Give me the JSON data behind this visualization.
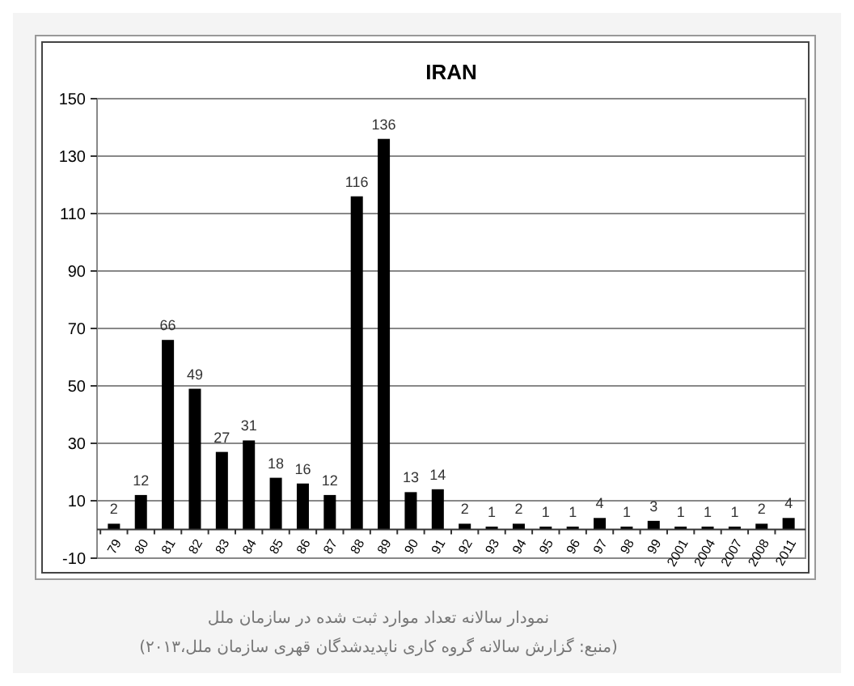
{
  "chart_data": {
    "type": "bar",
    "title": "IRAN",
    "categories": [
      "79",
      "80",
      "81",
      "82",
      "83",
      "84",
      "85",
      "86",
      "87",
      "88",
      "89",
      "90",
      "91",
      "92",
      "93",
      "94",
      "95",
      "96",
      "97",
      "98",
      "99",
      "2001",
      "2004",
      "2007",
      "2008",
      "2011"
    ],
    "values": [
      2,
      12,
      66,
      49,
      27,
      31,
      18,
      16,
      12,
      116,
      136,
      13,
      14,
      2,
      1,
      2,
      1,
      1,
      4,
      1,
      3,
      1,
      1,
      1,
      2,
      4
    ],
    "color": "#000000",
    "ylim": [
      -10,
      150
    ],
    "yticks": [
      -10,
      10,
      30,
      50,
      70,
      90,
      110,
      130,
      150
    ],
    "grid": "y",
    "data_labels": true,
    "annotations": [
      "نمودار سالانه تعداد موارد ثبت شده در سازمان ملل",
      "(منبع: گزارش سالانه گروه کاری ناپدیدشدگان قهری سازمان ملل،۲۰۱۳)"
    ]
  }
}
